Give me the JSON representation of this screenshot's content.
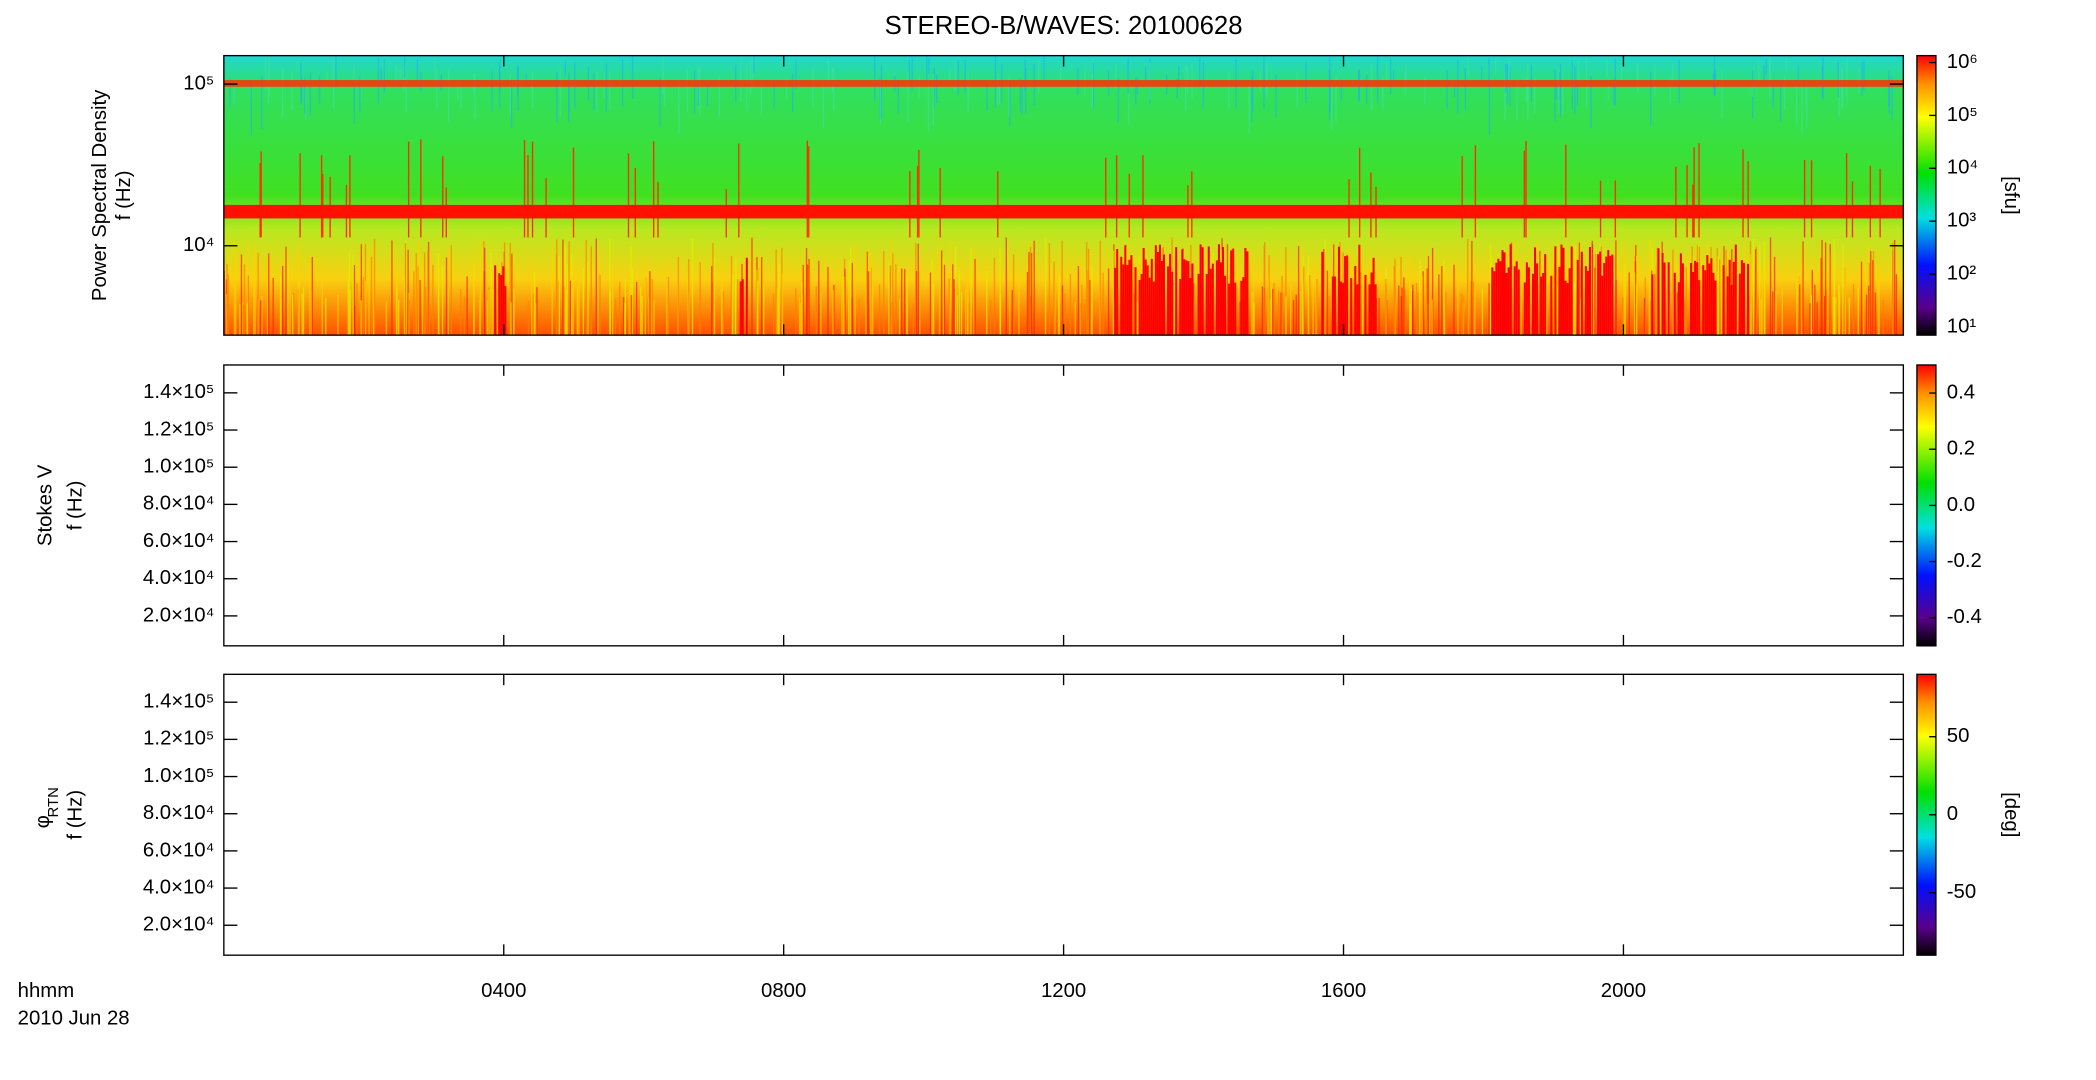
{
  "chart_data": [
    {
      "type": "spectrogram",
      "title": "STEREO-B/WAVES: 20100628",
      "ylabel": "Power Spectral Density",
      "ylabel2": "f (Hz)",
      "ylog": true,
      "ylim": [
        2800,
        150000
      ],
      "yticks": [
        {
          "value": 10000,
          "label": "10⁴"
        },
        {
          "value": 100000,
          "label": "10⁵"
        }
      ],
      "clog": true,
      "clim": [
        7,
        1350000
      ],
      "clabel": "[sfu]",
      "cticks": [
        {
          "value": 10,
          "label": "10¹"
        },
        {
          "value": 100,
          "label": "10²"
        },
        {
          "value": 1000,
          "label": "10³"
        },
        {
          "value": 10000,
          "label": "10⁴"
        },
        {
          "value": 100000,
          "label": "10⁵"
        },
        {
          "value": 1000000,
          "label": "10⁶"
        }
      ]
    },
    {
      "type": "spectrogram",
      "ylabel": "Stokes V",
      "ylabel2": "f (Hz)",
      "ylog": false,
      "ylim": [
        3900,
        155000
      ],
      "yticks": [
        {
          "value": 20000,
          "label": "2.0×10⁴"
        },
        {
          "value": 40000,
          "label": "4.0×10⁴"
        },
        {
          "value": 60000,
          "label": "6.0×10⁴"
        },
        {
          "value": 80000,
          "label": "8.0×10⁴"
        },
        {
          "value": 100000,
          "label": "1.0×10⁵"
        },
        {
          "value": 120000,
          "label": "1.2×10⁵"
        },
        {
          "value": 140000,
          "label": "1.4×10⁵"
        }
      ],
      "clog": false,
      "clim": [
        -0.5,
        0.5
      ],
      "cticks": [
        -0.4,
        -0.2,
        {
          "value": 0,
          "label": "0.0"
        },
        0.2,
        0.4
      ]
    },
    {
      "type": "spectrogram",
      "ylabel": "φ",
      "ylabel_sub": "RTN",
      "ylabel2": "f (Hz)",
      "ylog": false,
      "ylim": [
        3900,
        155000
      ],
      "yticks": [
        {
          "value": 20000,
          "label": "2.0×10⁴"
        },
        {
          "value": 40000,
          "label": "4.0×10⁴"
        },
        {
          "value": 60000,
          "label": "6.0×10⁴"
        },
        {
          "value": 80000,
          "label": "8.0×10⁴"
        },
        {
          "value": 100000,
          "label": "1.0×10⁵"
        },
        {
          "value": 120000,
          "label": "1.2×10⁵"
        },
        {
          "value": 140000,
          "label": "1.4×10⁵"
        }
      ],
      "clog": false,
      "clim": [
        -90,
        90
      ],
      "clabel": "[deg]",
      "cticks": [
        -50,
        0,
        50
      ],
      "xlabel": "hhmm",
      "xlabel2": "2010 Jun 28",
      "xlim": [
        0,
        24
      ],
      "xticks": [
        {
          "value": 4,
          "label": "0400"
        },
        {
          "value": 8,
          "label": "0800"
        },
        {
          "value": 12,
          "label": "1200"
        },
        {
          "value": 16,
          "label": "1600"
        },
        {
          "value": 20,
          "label": "2000"
        }
      ]
    }
  ]
}
